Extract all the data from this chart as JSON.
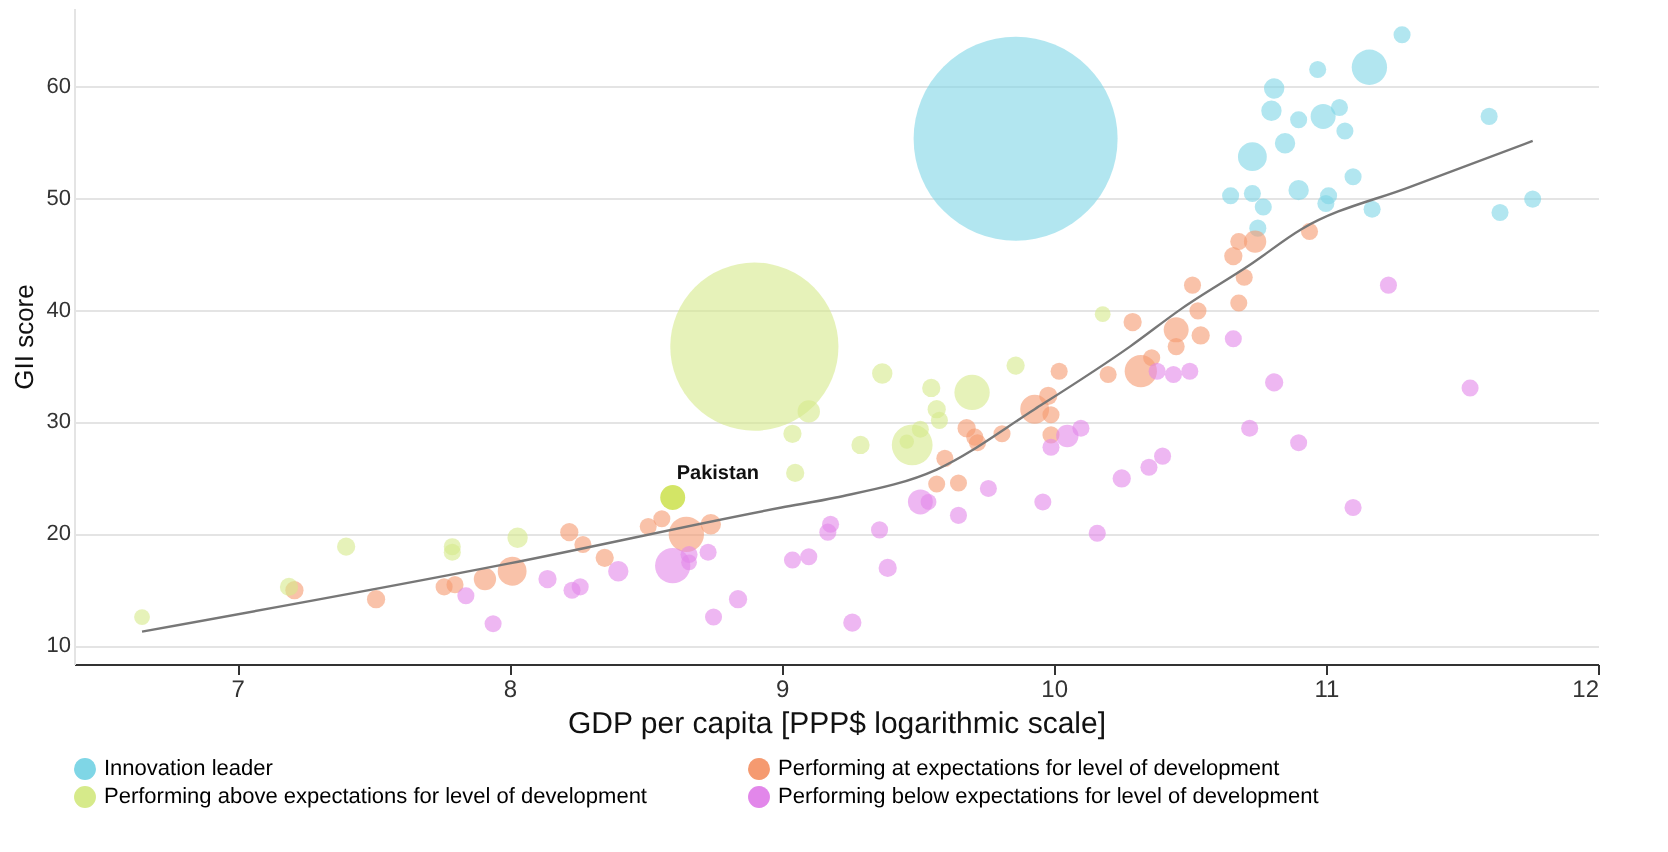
{
  "chart_data": {
    "type": "bubble",
    "xlabel": "GDP per capita [PPP$ logarithmic scale]",
    "ylabel": "GII score",
    "xlim": [
      6.4,
      12
    ],
    "xticks": [
      7,
      8,
      9,
      10,
      11,
      12
    ],
    "ylim": [
      8.3,
      67
    ],
    "yticks": [
      10,
      20,
      30,
      40,
      50,
      60
    ],
    "grid": "y",
    "legend": "bottom",
    "series": [
      {
        "name": "Innovation leader",
        "color": "#7fd6e6",
        "x": [
          9.86,
          11.28,
          10.97,
          11.16,
          10.81,
          10.8,
          10.9,
          10.99,
          11.05,
          11.07,
          10.85,
          10.73,
          11.6,
          11.1,
          10.9,
          10.65,
          10.73,
          11.01,
          11.0,
          10.77,
          11.17,
          11.64,
          11.76,
          10.75
        ],
        "values": [
          55.3,
          64.6,
          61.5,
          61.7,
          59.8,
          57.8,
          57.0,
          57.3,
          58.1,
          56.0,
          54.9,
          53.7,
          57.3,
          51.9,
          50.7,
          50.2,
          50.4,
          50.2,
          49.5,
          49.2,
          49.0,
          48.7,
          49.9,
          47.3
        ],
        "sizes": [
          1,
          0.007,
          0.007,
          0.03,
          0.01,
          0.01,
          0.007,
          0.015,
          0.007,
          0.007,
          0.01,
          0.02,
          0.007,
          0.007,
          0.01,
          0.007,
          0.007,
          0.007,
          0.007,
          0.007,
          0.007,
          0.007,
          0.007,
          0.007
        ]
      },
      {
        "name": "Performing at expectations for level of development",
        "color": "#f59a70",
        "x": [
          10.94,
          10.68,
          10.74,
          10.66,
          10.7,
          10.51,
          10.68,
          10.53,
          10.29,
          10.45,
          10.54,
          10.45,
          10.36,
          10.02,
          10.2,
          10.32,
          9.98,
          9.93,
          9.99,
          9.68,
          9.71,
          9.72,
          9.81,
          9.99,
          9.6,
          9.57,
          9.65,
          8.22,
          8.27,
          8.35,
          8.51,
          8.56,
          8.65,
          8.74,
          8.01,
          7.91,
          7.76,
          7.8,
          7.51,
          7.21
        ],
        "values": [
          47.0,
          46.1,
          46.1,
          44.8,
          42.9,
          42.2,
          40.6,
          39.9,
          38.9,
          38.2,
          37.7,
          36.7,
          35.7,
          34.5,
          34.2,
          34.5,
          32.3,
          31.1,
          30.6,
          29.4,
          28.6,
          28.1,
          28.9,
          28.8,
          26.7,
          24.4,
          24.5,
          20.1,
          19.0,
          17.8,
          20.6,
          21.3,
          19.9,
          20.8,
          16.6,
          15.9,
          15.2,
          15.4,
          14.1,
          14.9
        ],
        "sizes": [
          0.007,
          0.007,
          0.012,
          0.008,
          0.007,
          0.007,
          0.007,
          0.007,
          0.008,
          0.015,
          0.008,
          0.007,
          0.007,
          0.007,
          0.007,
          0.025,
          0.008,
          0.02,
          0.007,
          0.008,
          0.007,
          0.007,
          0.007,
          0.007,
          0.007,
          0.007,
          0.007,
          0.008,
          0.007,
          0.008,
          0.007,
          0.007,
          0.03,
          0.01,
          0.02,
          0.012,
          0.007,
          0.007,
          0.008,
          0.008
        ]
      },
      {
        "name": "Performing above expectations for level of development",
        "color": "#d6ea8a",
        "x": [
          8.9,
          9.1,
          9.04,
          9.29,
          9.05,
          8.03,
          7.79,
          7.79,
          7.4,
          7.19,
          6.65,
          10.18,
          9.86,
          9.37,
          9.55,
          9.7,
          9.57,
          9.58,
          9.51,
          9.48,
          9.46
        ],
        "values": [
          36.7,
          30.9,
          28.9,
          27.9,
          25.4,
          19.6,
          18.8,
          18.3,
          18.8,
          15.2,
          12.5,
          39.6,
          35.0,
          34.3,
          33.0,
          32.6,
          31.1,
          30.1,
          29.3,
          27.9,
          28.2
        ],
        "sizes": [
          0.68,
          0.012,
          0.008,
          0.008,
          0.008,
          0.01,
          0.007,
          0.007,
          0.008,
          0.008,
          0.006,
          0.006,
          0.008,
          0.01,
          0.008,
          0.03,
          0.008,
          0.007,
          0.007,
          0.04,
          0.005
        ]
      },
      {
        "name": "Performing below expectations for level of development",
        "color": "#e287ea",
        "x": [
          8.6,
          8.66,
          8.66,
          8.73,
          8.4,
          8.14,
          8.26,
          8.23,
          7.84,
          7.94,
          8.84,
          8.75,
          9.26,
          9.18,
          9.17,
          9.04,
          9.1,
          9.36,
          9.39,
          9.51,
          9.54,
          9.65,
          9.76,
          9.96,
          9.99,
          10.05,
          10.1,
          10.16,
          10.25,
          10.35,
          10.4,
          10.72,
          10.9,
          11.1,
          10.81,
          11.53,
          10.38,
          10.44,
          10.5,
          11.23,
          10.66
        ],
        "values": [
          17.1,
          18.1,
          17.4,
          18.3,
          16.6,
          15.9,
          15.2,
          14.9,
          14.4,
          11.9,
          14.1,
          12.5,
          12.0,
          20.8,
          20.1,
          17.6,
          17.9,
          20.3,
          16.9,
          22.8,
          22.8,
          21.6,
          24.0,
          22.8,
          27.7,
          28.7,
          29.4,
          20.0,
          24.9,
          25.9,
          26.9,
          29.4,
          28.1,
          22.3,
          33.5,
          33.0,
          34.5,
          34.2,
          34.5,
          42.2,
          37.4
        ],
        "sizes": [
          0.03,
          0.007,
          0.006,
          0.007,
          0.01,
          0.008,
          0.007,
          0.007,
          0.007,
          0.007,
          0.008,
          0.007,
          0.008,
          0.007,
          0.007,
          0.007,
          0.007,
          0.007,
          0.008,
          0.015,
          0.006,
          0.007,
          0.007,
          0.007,
          0.007,
          0.012,
          0.007,
          0.007,
          0.008,
          0.007,
          0.007,
          0.007,
          0.007,
          0.007,
          0.008,
          0.007,
          0.007,
          0.007,
          0.007,
          0.007,
          0.007
        ]
      },
      {
        "color": "#b5d400",
        "x": [
          8.6
        ],
        "values": [
          23.2
        ],
        "sizes": [
          0.015
        ]
      },
      {
        "type": "line",
        "color": "#777777",
        "x": [
          6.65,
          8.0,
          9.0,
          9.2,
          9.57,
          9.93,
          10.28,
          10.47,
          10.72,
          10.91,
          11.31,
          11.76
        ],
        "values": [
          11.2,
          17.3,
          22.3,
          23.2,
          25.7,
          31.1,
          36.7,
          40.1,
          44.0,
          47.2,
          51.0,
          55.1
        ]
      }
    ],
    "annotations": [
      {
        "text": "Pakistan",
        "x": 8.6,
        "y": 23.2
      }
    ]
  }
}
